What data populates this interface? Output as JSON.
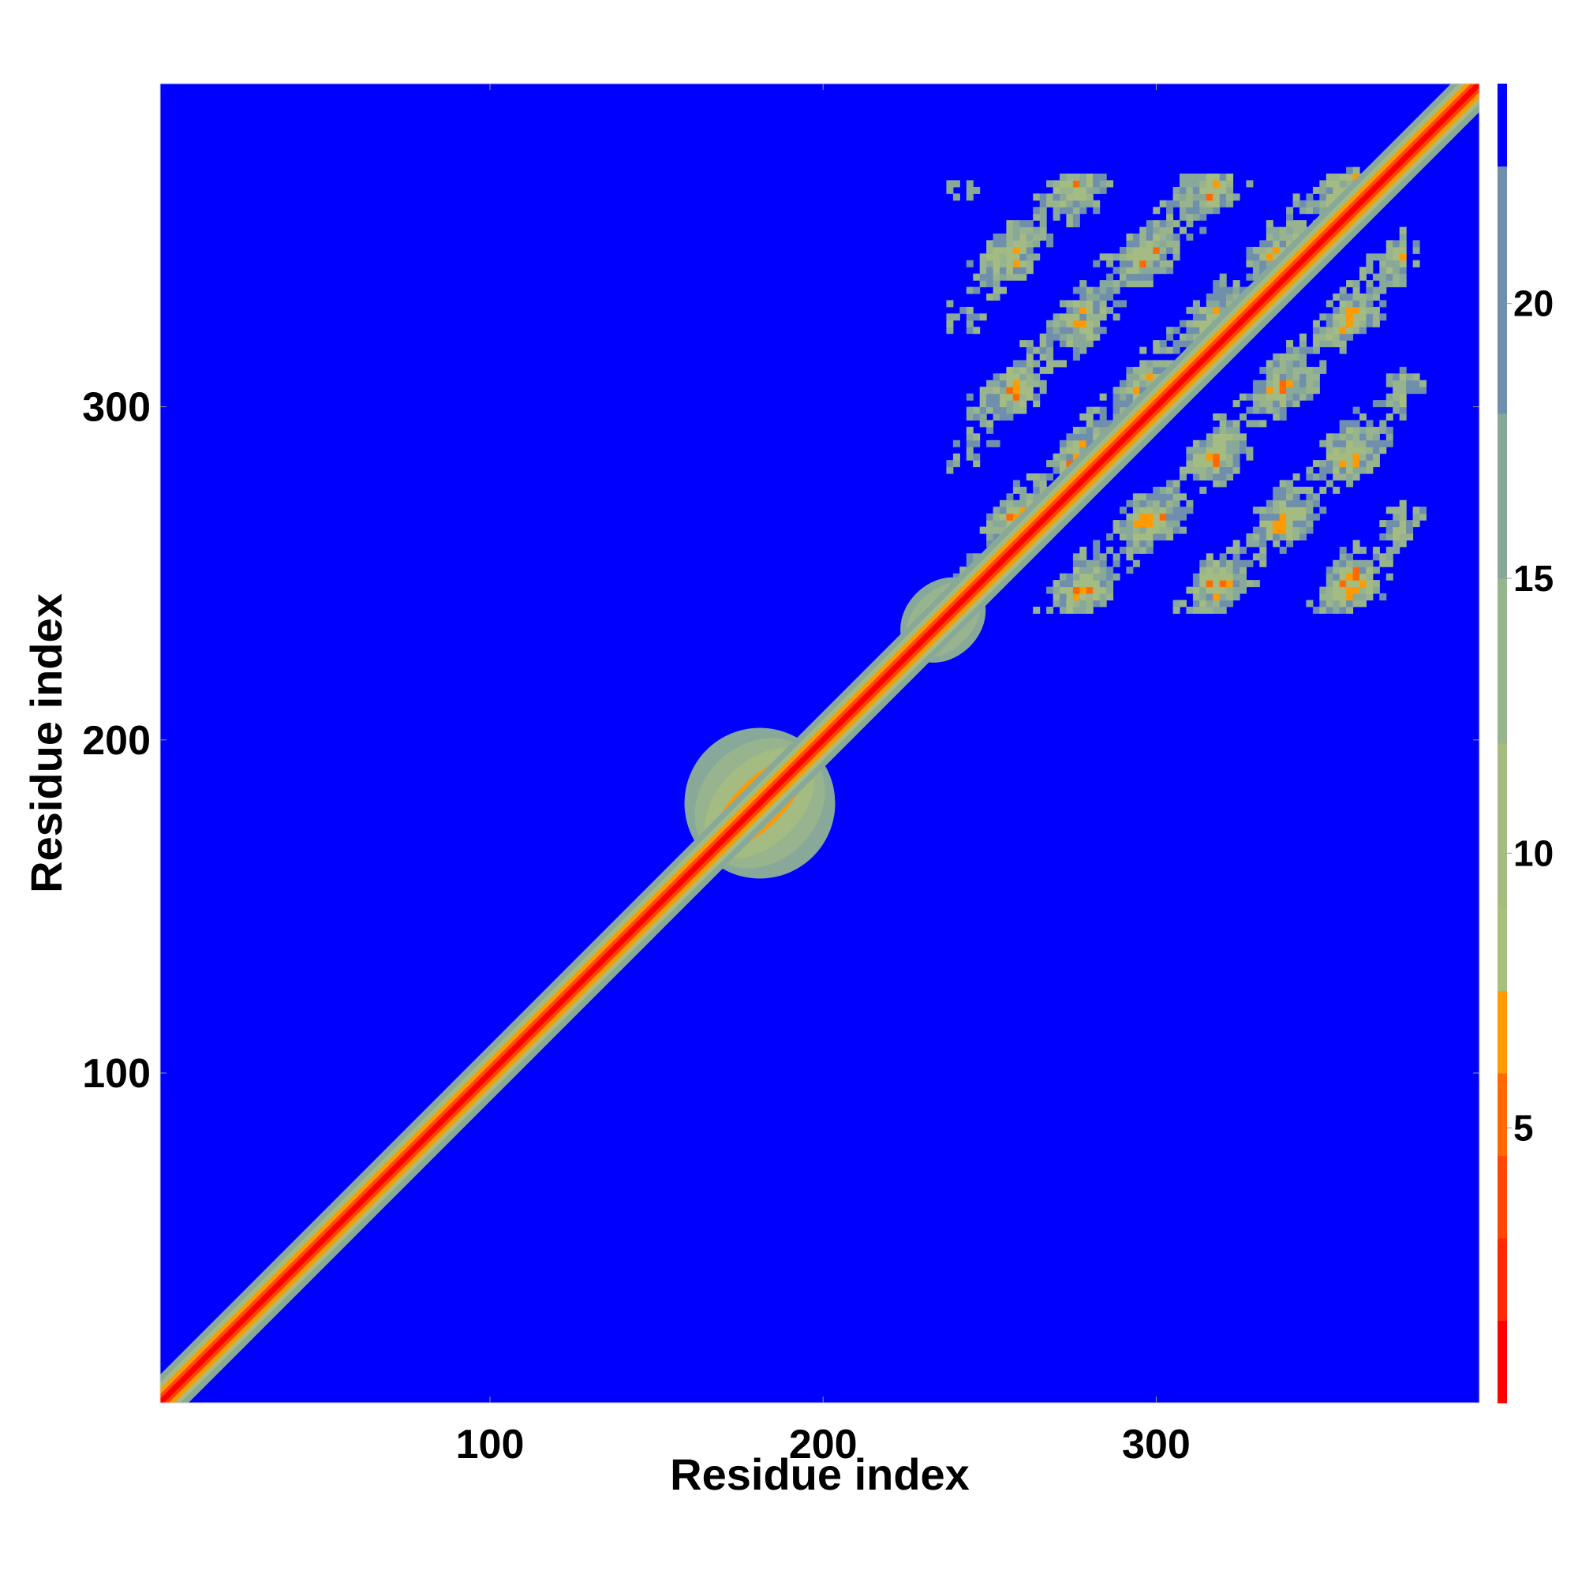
{
  "chart_data": {
    "type": "heatmap",
    "title": "",
    "xlabel": "Residue index",
    "ylabel": "Residue index",
    "xlim": [
      1,
      397
    ],
    "ylim": [
      1,
      397
    ],
    "x_ticks": [
      100,
      200,
      300
    ],
    "y_ticks": [
      100,
      200,
      300
    ],
    "colorbar": {
      "range": [
        0,
        24
      ],
      "ticks": [
        5,
        10,
        15,
        20
      ],
      "levels": [
        {
          "from": 0,
          "to": 1.5,
          "color": "#ff0000"
        },
        {
          "from": 1.5,
          "to": 3.0,
          "color": "#ff2a00"
        },
        {
          "from": 3.0,
          "to": 4.5,
          "color": "#ff4800"
        },
        {
          "from": 4.5,
          "to": 6.0,
          "color": "#ff6a00"
        },
        {
          "from": 6.0,
          "to": 7.5,
          "color": "#ff9a00"
        },
        {
          "from": 7.5,
          "to": 9.0,
          "color": "#a8c07e"
        },
        {
          "from": 9.0,
          "to": 12.0,
          "color": "#a4bb82"
        },
        {
          "from": 12.0,
          "to": 15.0,
          "color": "#98b48e"
        },
        {
          "from": 15.0,
          "to": 18.0,
          "color": "#88a89a"
        },
        {
          "from": 18.0,
          "to": 22.5,
          "color": "#6f8fac"
        },
        {
          "from": 22.5,
          "to": 24.0,
          "color": "#0000ff"
        }
      ]
    },
    "background_color": "#0000ff",
    "series": [
      {
        "kind": "diagonal_band",
        "from": 1,
        "to": 397,
        "half_width": 5
      },
      {
        "kind": "diagonal_blob",
        "center": 181,
        "extent": [
          165,
          197
        ],
        "half_width": 16
      },
      {
        "kind": "diagonal_blob",
        "center": 236,
        "extent": [
          226,
          246
        ],
        "half_width": 8
      },
      {
        "kind": "contact_domain",
        "x_range": [
          237,
          380
        ],
        "y_range": [
          232,
          375
        ]
      }
    ]
  }
}
